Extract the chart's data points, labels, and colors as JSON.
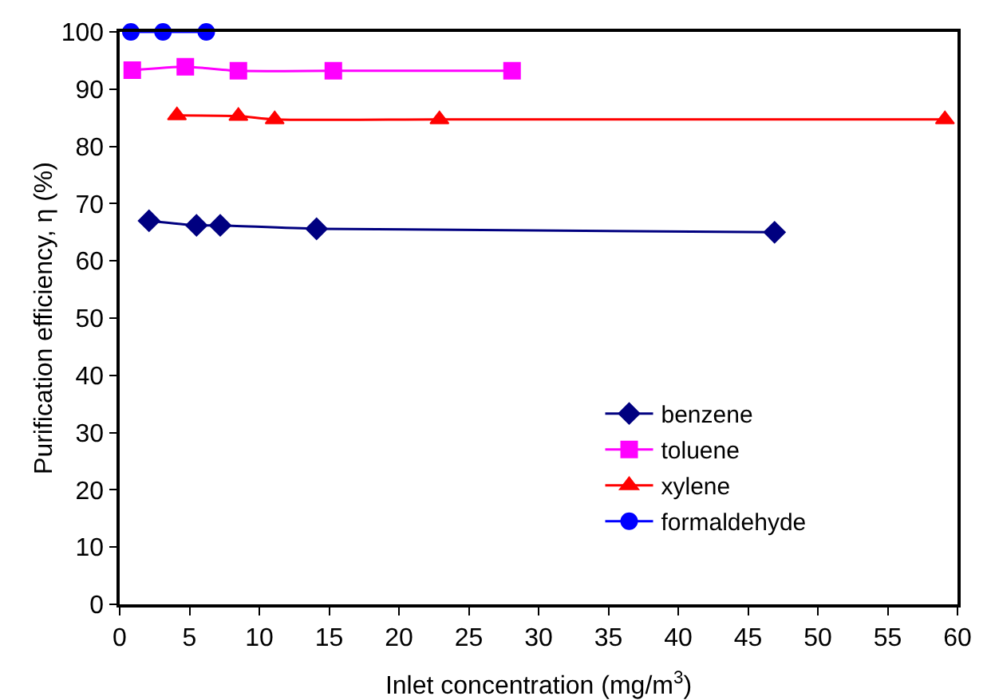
{
  "chart_data": {
    "type": "line",
    "xlabel": "Inlet concentration (mg/m$^{3}$)",
    "ylabel": "Purification efficiency, η (%)",
    "xlim": [
      0,
      60
    ],
    "xticks": [
      0,
      5,
      10,
      15,
      20,
      25,
      30,
      35,
      40,
      45,
      50,
      55,
      60
    ],
    "ylim": [
      0,
      100
    ],
    "yticks": [
      0,
      10,
      20,
      30,
      40,
      50,
      60,
      70,
      80,
      90,
      100
    ],
    "grid": false,
    "legend": "bottom right",
    "series": [
      {
        "name": "benzene",
        "color": "#000080",
        "marker": "diamond",
        "x": [
          2.1,
          5.5,
          7.2,
          14.1,
          46.9
        ],
        "values": [
          67,
          66.2,
          66.2,
          65.6,
          65
        ]
      },
      {
        "name": "toluene",
        "color": "#ff00ff",
        "marker": "square",
        "x": [
          0.9,
          4.7,
          8.5,
          15.3,
          28.1
        ],
        "values": [
          93.3,
          93.9,
          93.2,
          93.2,
          93.2
        ]
      },
      {
        "name": "xylene",
        "color": "#ff0000",
        "marker": "triangle",
        "x": [
          4.1,
          8.5,
          11.1,
          22.9,
          59.1
        ],
        "values": [
          85.4,
          85.3,
          84.7,
          84.7,
          84.7
        ]
      },
      {
        "name": "formaldehyde",
        "color": "#0000ff",
        "marker": "circle",
        "x": [
          0.8,
          3.1,
          6.2
        ],
        "values": [
          100,
          100,
          100
        ]
      }
    ]
  }
}
